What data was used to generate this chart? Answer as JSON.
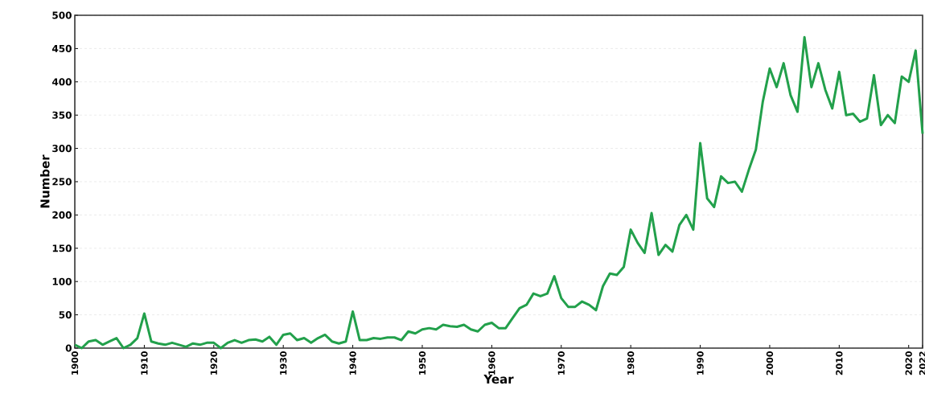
{
  "chart_data": {
    "type": "line",
    "xlabel": "Year",
    "ylabel": "Number",
    "x": [
      1900,
      1901,
      1902,
      1903,
      1904,
      1905,
      1906,
      1907,
      1908,
      1909,
      1910,
      1911,
      1912,
      1913,
      1914,
      1915,
      1916,
      1917,
      1918,
      1919,
      1920,
      1921,
      1922,
      1923,
      1924,
      1925,
      1926,
      1927,
      1928,
      1929,
      1930,
      1931,
      1932,
      1933,
      1934,
      1935,
      1936,
      1937,
      1938,
      1939,
      1940,
      1941,
      1942,
      1943,
      1944,
      1945,
      1946,
      1947,
      1948,
      1949,
      1950,
      1951,
      1952,
      1953,
      1954,
      1955,
      1956,
      1957,
      1958,
      1959,
      1960,
      1961,
      1962,
      1963,
      1964,
      1965,
      1966,
      1967,
      1968,
      1969,
      1970,
      1971,
      1972,
      1973,
      1974,
      1975,
      1976,
      1977,
      1978,
      1979,
      1980,
      1981,
      1982,
      1983,
      1984,
      1985,
      1986,
      1987,
      1988,
      1989,
      1990,
      1991,
      1992,
      1993,
      1994,
      1995,
      1996,
      1997,
      1998,
      1999,
      2000,
      2001,
      2002,
      2003,
      2004,
      2005,
      2006,
      2007,
      2008,
      2009,
      2010,
      2011,
      2012,
      2013,
      2014,
      2015,
      2016,
      2017,
      2018,
      2019,
      2020,
      2021,
      2022
    ],
    "series": [
      {
        "color": "#22a04b",
        "values": [
          5,
          0,
          10,
          12,
          5,
          10,
          15,
          0,
          5,
          15,
          52,
          10,
          7,
          5,
          8,
          5,
          2,
          7,
          5,
          8,
          8,
          0,
          8,
          12,
          8,
          12,
          13,
          10,
          17,
          5,
          20,
          22,
          12,
          15,
          8,
          15,
          20,
          10,
          7,
          10,
          55,
          12,
          12,
          15,
          14,
          16,
          16,
          12,
          25,
          22,
          28,
          30,
          28,
          35,
          33,
          32,
          35,
          28,
          25,
          35,
          38,
          30,
          30,
          45,
          60,
          65,
          82,
          78,
          82,
          108,
          75,
          62,
          62,
          70,
          65,
          57,
          93,
          112,
          110,
          122,
          178,
          158,
          143,
          203,
          140,
          155,
          145,
          185,
          200,
          178,
          308,
          225,
          212,
          258,
          248,
          250,
          235,
          268,
          298,
          370,
          420,
          392,
          428,
          380,
          355,
          467,
          392,
          428,
          388,
          360,
          415,
          350,
          352,
          340,
          345,
          410,
          335,
          350,
          338,
          408,
          400,
          447,
          322
        ]
      }
    ],
    "xlim": [
      1900,
      2022
    ],
    "ylim": [
      0,
      500
    ],
    "xticks": [
      1900,
      1910,
      1920,
      1930,
      1940,
      1950,
      1960,
      1970,
      1980,
      1990,
      2000,
      2010,
      2020,
      2022
    ],
    "yticks": [
      0,
      50,
      100,
      150,
      200,
      250,
      300,
      350,
      400,
      450,
      500
    ],
    "grid": "y",
    "marker": "none",
    "line_style": "solid"
  }
}
